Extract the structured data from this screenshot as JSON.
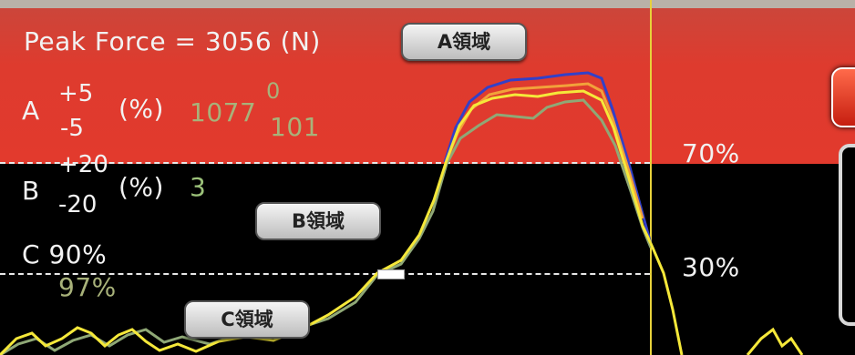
{
  "header": {
    "peak_force_label": "Peak Force = 3056 (N)"
  },
  "zones": {
    "a": {
      "label": "A領域",
      "letter": "A",
      "plus": "+5",
      "minus": "-5",
      "unit": "(%)",
      "value_main": "1077",
      "value_sup": "0",
      "value_sub": "101"
    },
    "b": {
      "label": "B領域",
      "letter": "B",
      "plus": "+20",
      "minus": "-20",
      "unit": "(%)",
      "value": "3"
    },
    "c": {
      "label": "C領域",
      "threshold": "C 90%",
      "value": "97%"
    }
  },
  "thresholds": {
    "upper": "70%",
    "lower": "30%"
  },
  "colors": {
    "zone_a_bg": "#e23a2d",
    "zone_bc_bg": "#000000",
    "trace_yellow": "#f5e83a",
    "trace_blue": "#3340c8",
    "trace_orange": "#f2a13a",
    "trace_green": "#8fa876",
    "vline": "#e7d23a"
  }
}
